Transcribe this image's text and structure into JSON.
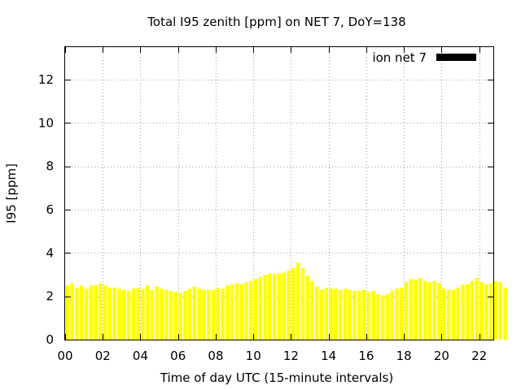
{
  "chart_data": {
    "type": "bar",
    "title": "Total I95 zenith [ppm] on NET 7, DoY=138",
    "xlabel": "Time of day UTC (15-minute intervals)",
    "ylabel": "I95 [ppm]",
    "xlim": [
      0,
      22.75
    ],
    "ylim": [
      0,
      13.5
    ],
    "x_ticks": [
      0,
      2,
      4,
      6,
      8,
      10,
      12,
      14,
      16,
      18,
      20,
      22
    ],
    "x_tick_labels": [
      "00",
      "02",
      "04",
      "06",
      "08",
      "10",
      "12",
      "14",
      "16",
      "18",
      "20",
      "22"
    ],
    "y_ticks": [
      0,
      2,
      4,
      6,
      8,
      10,
      12
    ],
    "y_tick_labels": [
      "0",
      "2",
      "4",
      "6",
      "8",
      "10",
      "12"
    ],
    "grid": true,
    "legend_position": "top-right",
    "series": [
      {
        "name": "ion net 7",
        "color": "#ffff00",
        "x_start": 0,
        "x_step": 0.25,
        "values": [
          2.5,
          2.6,
          2.4,
          2.5,
          2.35,
          2.5,
          2.5,
          2.6,
          2.5,
          2.4,
          2.4,
          2.35,
          2.3,
          2.25,
          2.35,
          2.4,
          2.35,
          2.5,
          2.3,
          2.45,
          2.35,
          2.3,
          2.25,
          2.2,
          2.15,
          2.25,
          2.35,
          2.45,
          2.35,
          2.3,
          2.3,
          2.3,
          2.4,
          2.35,
          2.5,
          2.55,
          2.6,
          2.55,
          2.65,
          2.7,
          2.8,
          2.9,
          3.0,
          3.05,
          3.05,
          3.05,
          3.1,
          3.2,
          3.3,
          3.55,
          3.3,
          2.95,
          2.7,
          2.45,
          2.3,
          2.4,
          2.35,
          2.35,
          2.3,
          2.35,
          2.3,
          2.25,
          2.25,
          2.3,
          2.2,
          2.25,
          2.1,
          2.05,
          2.1,
          2.25,
          2.35,
          2.4,
          2.65,
          2.8,
          2.75,
          2.85,
          2.7,
          2.65,
          2.7,
          2.6,
          2.35,
          2.3,
          2.3,
          2.4,
          2.55,
          2.55,
          2.7,
          2.85,
          2.65,
          2.55,
          2.6,
          2.7,
          2.65,
          2.4
        ]
      }
    ]
  }
}
